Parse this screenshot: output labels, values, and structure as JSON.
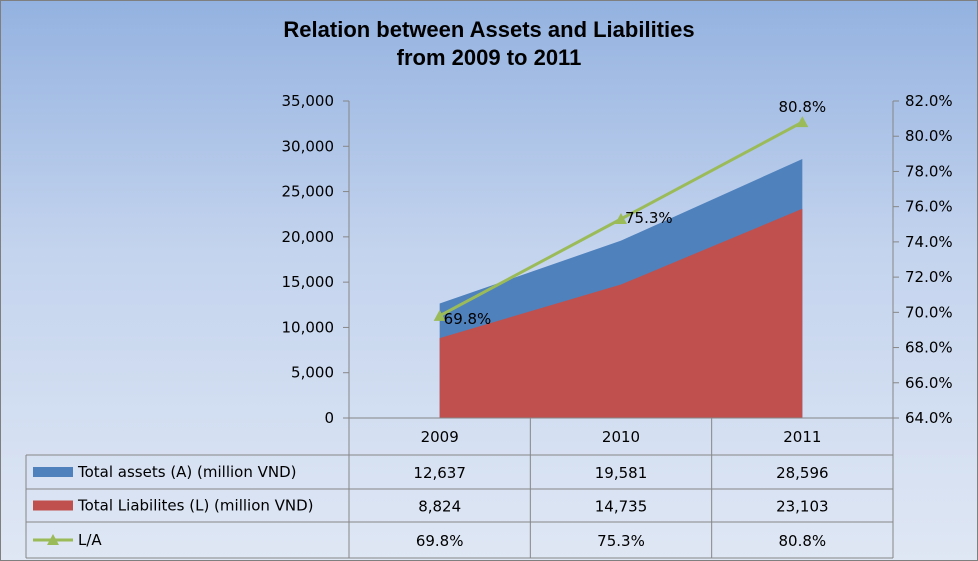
{
  "chart_data": {
    "type": "area",
    "title": [
      "Relation between Assets and Liabilities",
      "from 2009 to 2011"
    ],
    "categories": [
      "2009",
      "2010",
      "2011"
    ],
    "series": [
      {
        "name": "Total assets (A) (million VND)",
        "type": "area",
        "axis": "left",
        "color": "#4f81bd",
        "values": [
          12637,
          19581,
          28596
        ],
        "labels": [
          "12,637",
          "19,581",
          "28,596"
        ]
      },
      {
        "name": "Total Liabilites (L) (million VND)",
        "type": "area",
        "axis": "left",
        "color": "#c0504d",
        "values": [
          8824,
          14735,
          23103
        ],
        "labels": [
          "8,824",
          "14,735",
          "23,103"
        ]
      },
      {
        "name": "L/A",
        "type": "line",
        "axis": "right",
        "color": "#9bbb59",
        "values": [
          69.8,
          75.3,
          80.8
        ],
        "labels": [
          "69.8%",
          "75.3%",
          "80.8%"
        ]
      }
    ],
    "left_axis": {
      "ylim": [
        0,
        35000
      ],
      "ticks": [
        "0",
        "5,000",
        "10,000",
        "15,000",
        "20,000",
        "25,000",
        "30,000",
        "35,000"
      ]
    },
    "right_axis": {
      "ylim": [
        64,
        82
      ],
      "ticks": [
        "64.0%",
        "66.0%",
        "68.0%",
        "70.0%",
        "72.0%",
        "74.0%",
        "76.0%",
        "78.0%",
        "80.0%",
        "82.0%"
      ]
    },
    "legend": "data-table-bottom",
    "grid": false
  }
}
